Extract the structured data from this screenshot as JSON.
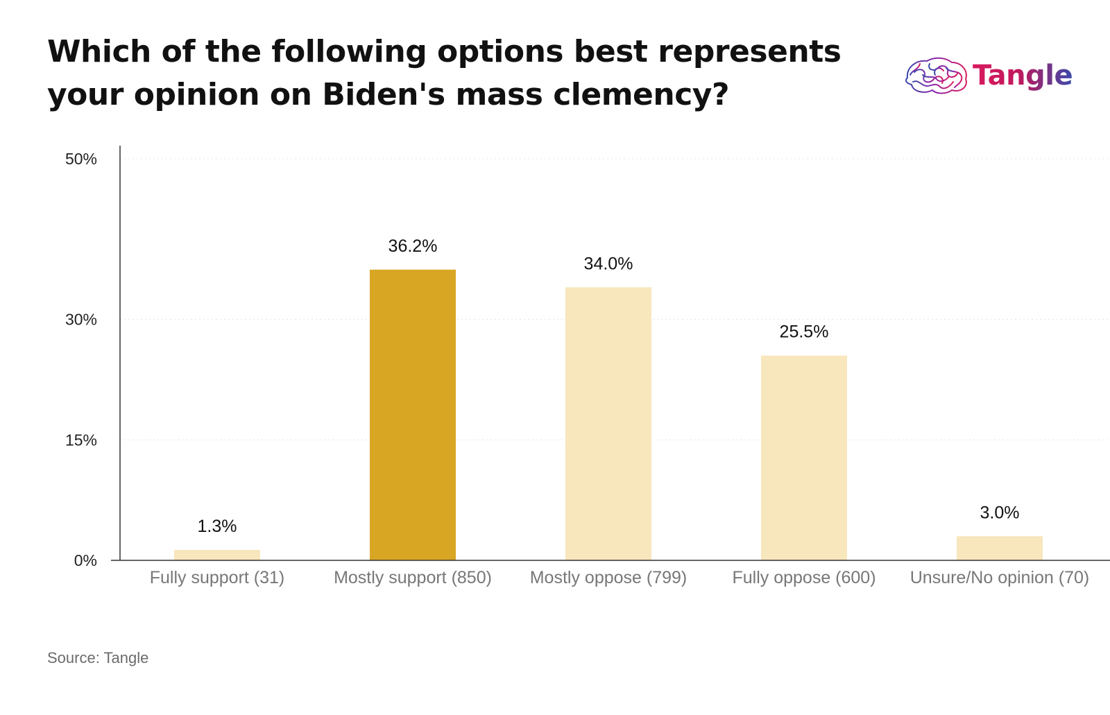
{
  "header": {
    "title_line1": "Which of the following options best represents",
    "title_line2": "your opinion on Biden's mass clemency?"
  },
  "brand": {
    "name": "Tangle",
    "icon": "brain-icon"
  },
  "footer": {
    "source": "Source: Tangle"
  },
  "colors": {
    "highlight_bar": "#d9a623",
    "default_bar": "#f8e6bc",
    "axis": "#333333",
    "grid": "#e4e4e4",
    "tick_label": "#222222",
    "category_label": "#777777"
  },
  "chart_data": {
    "type": "bar",
    "title": "Which of the following options best represents your opinion on Biden's mass clemency?",
    "categories": [
      "Fully support (31)",
      "Mostly support (850)",
      "Mostly oppose (799)",
      "Fully oppose (600)",
      "Unsure/No opinion (70)"
    ],
    "values": [
      1.3,
      36.2,
      34.0,
      25.5,
      3.0
    ],
    "value_labels": [
      "1.3%",
      "36.2%",
      "34.0%",
      "25.5%",
      "3.0%"
    ],
    "highlighted_index": 1,
    "ylim": [
      0,
      50
    ],
    "yticks": [
      0,
      15,
      30,
      50
    ],
    "ytick_labels": [
      "0%",
      "15%",
      "30%",
      "50%"
    ],
    "grid": "horizontal dotted",
    "xlabel": "",
    "ylabel": ""
  }
}
